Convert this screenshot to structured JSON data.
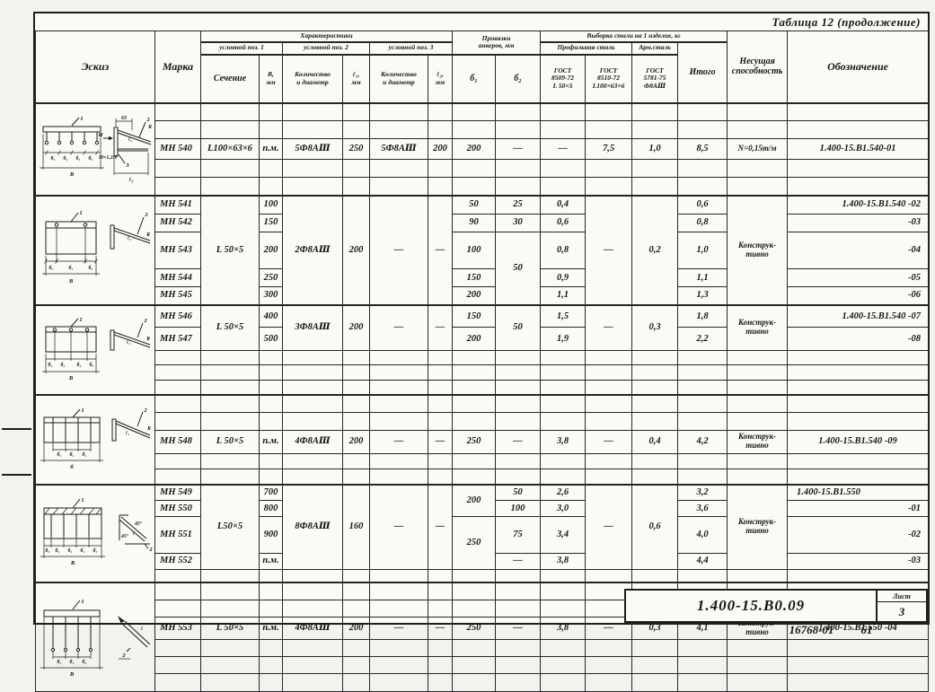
{
  "title": "Таблица 12 (продолжение)",
  "header": {
    "eskiz": "Эскиз",
    "marka": "Марка",
    "khar": "Характеристики",
    "pos1": "условной поз. 1",
    "pos2": "условной поз. 2",
    "pos3": "условной поз. 3",
    "sech": "Сечение",
    "bmm": "В,\nмм",
    "kol": "Количество\nи диаметр",
    "l1": "ℓ₁,\nмм",
    "l2": "ℓ₂,\nмм",
    "priv": "Привязки\nанкеров, мм",
    "b1": "б₁",
    "b2": "б₂",
    "vyb": "Выборка стали на 1 изделие, кг",
    "prof": "Профильная сталь",
    "arm": "Арм.сталь",
    "g1": "ГОСТ\n8509-72\nL 50×5",
    "g2": "ГОСТ\n8510-72\nL100×63×6",
    "g3": "ГОСТ\n5781-75\nФ8АⅢ",
    "itogo": "Итого",
    "nes": "Несущая\nспособность",
    "obozn": "Обозначение"
  },
  "table": {
    "blocks": [
      {
        "sketch": "s1",
        "rows": [
          {
            "h": 16,
            "e": 15
          },
          {
            "h": 16,
            "e": 15
          },
          {
            "h": 18,
            "cells": [
              {
                "t": "МН 540"
              },
              {
                "t": "L100×63×6"
              },
              {
                "t": "п.м."
              },
              {
                "t": "5Ф8АⅢ"
              },
              {
                "t": "250"
              },
              {
                "t": "5Ф8АⅢ"
              },
              {
                "t": "200"
              },
              {
                "t": "200"
              },
              {
                "t": "—"
              },
              {
                "t": "—"
              },
              {
                "t": "7,5"
              },
              {
                "t": "1,0"
              },
              {
                "t": "8,5"
              },
              {
                "t": "N=0,15т/м"
              },
              {
                "t": "1.400-15.В1.540-01",
                "c": "obc"
              }
            ]
          },
          {
            "h": 16,
            "e": 15
          },
          {
            "h": 16,
            "e": 15
          }
        ]
      },
      {
        "sketch": "s2",
        "rows": [
          {
            "h": 20,
            "cells": [
              {
                "t": "МН 541"
              },
              {
                "t": "L 50×5",
                "s": 5
              },
              {
                "t": "100"
              },
              {
                "t": "2Ф8АⅢ",
                "s": 5
              },
              {
                "t": "200",
                "s": 5
              },
              {
                "t": "—",
                "s": 5
              },
              {
                "t": "—",
                "s": 5
              },
              {
                "t": "50"
              },
              {
                "t": "25"
              },
              {
                "t": "0,4"
              },
              {
                "t": "—",
                "s": 5
              },
              {
                "t": "0,2",
                "s": 5
              },
              {
                "t": "0,6"
              },
              {
                "t": "Конструк-\nтивно",
                "s": 5
              },
              {
                "t": "1.400-15.В1.540 -02",
                "c": "obr"
              }
            ]
          },
          {
            "h": 20,
            "cells": [
              {
                "t": "МН 542"
              },
              {
                "t": "150"
              },
              {
                "t": "90"
              },
              {
                "t": "30"
              },
              {
                "t": "0,6"
              },
              {
                "t": "0,8"
              },
              {
                "t": "-03",
                "c": "obr"
              }
            ]
          },
          {
            "h": 20,
            "cells": [
              {
                "t": "МН 543"
              },
              {
                "t": "200"
              },
              {
                "t": "100"
              },
              {
                "t": "50",
                "s": 3
              },
              {
                "t": "0,8"
              },
              {
                "t": "1,0"
              },
              {
                "t": "-04",
                "c": "obr"
              }
            ]
          },
          {
            "h": 20,
            "cells": [
              {
                "t": "МН 544"
              },
              {
                "t": "250"
              },
              {
                "t": "150"
              },
              {
                "t": "0,9"
              },
              {
                "t": "1,1"
              },
              {
                "t": "-05",
                "c": "obr"
              }
            ]
          },
          {
            "h": 20,
            "cells": [
              {
                "t": "МН 545"
              },
              {
                "t": "300"
              },
              {
                "t": "200"
              },
              {
                "t": "1,1"
              },
              {
                "t": "1,3"
              },
              {
                "t": "-06",
                "c": "obr"
              }
            ]
          }
        ]
      },
      {
        "sketch": "s3",
        "rows": [
          {
            "h": 20,
            "cells": [
              {
                "t": "МН 546"
              },
              {
                "t": "L 50×5",
                "s": 2
              },
              {
                "t": "400"
              },
              {
                "t": "3Ф8АⅢ",
                "s": 2
              },
              {
                "t": "200",
                "s": 2
              },
              {
                "t": "—",
                "s": 2
              },
              {
                "t": "—",
                "s": 2
              },
              {
                "t": "150"
              },
              {
                "t": "50",
                "s": 2
              },
              {
                "t": "1,5"
              },
              {
                "t": "—",
                "s": 2
              },
              {
                "t": "0,3",
                "s": 2
              },
              {
                "t": "1,8"
              },
              {
                "t": "Конструк-\nтивно",
                "s": 2
              },
              {
                "t": "1.400-15.В1.540 -07",
                "c": "obr"
              }
            ]
          },
          {
            "h": 20,
            "cells": [
              {
                "t": "МН 547"
              },
              {
                "t": "500"
              },
              {
                "t": "200"
              },
              {
                "t": "1,9"
              },
              {
                "t": "2,2"
              },
              {
                "t": "-08",
                "c": "obr"
              }
            ]
          },
          {
            "h": 13,
            "e": 15
          },
          {
            "h": 13,
            "e": 15
          },
          {
            "h": 13,
            "e": 15
          }
        ]
      },
      {
        "sketch": "s4",
        "rows": [
          {
            "h": 16,
            "e": 15
          },
          {
            "h": 16,
            "e": 15
          },
          {
            "h": 18,
            "cells": [
              {
                "t": "МН 548"
              },
              {
                "t": "L 50×5"
              },
              {
                "t": "п.м."
              },
              {
                "t": "4Ф8АⅢ"
              },
              {
                "t": "200"
              },
              {
                "t": "—"
              },
              {
                "t": "—"
              },
              {
                "t": "250"
              },
              {
                "t": "—"
              },
              {
                "t": "3,8"
              },
              {
                "t": "—"
              },
              {
                "t": "0,4"
              },
              {
                "t": "4,2"
              },
              {
                "t": "Конструк-\nтивно"
              },
              {
                "t": "1.400-15.В1.540 -09",
                "c": "obc"
              }
            ]
          },
          {
            "h": 14,
            "e": 15
          },
          {
            "h": 14,
            "e": 15
          }
        ]
      },
      {
        "sketch": "s5",
        "rows": [
          {
            "h": 18,
            "cells": [
              {
                "t": "МН 549"
              },
              {
                "t": "L50×5",
                "s": 4
              },
              {
                "t": "700"
              },
              {
                "t": "8Ф8АⅢ",
                "s": 4
              },
              {
                "t": "160",
                "s": 4
              },
              {
                "t": "—",
                "s": 4
              },
              {
                "t": "—",
                "s": 4
              },
              {
                "t": "200",
                "s": 2
              },
              {
                "t": "50"
              },
              {
                "t": "2,6"
              },
              {
                "t": "—",
                "s": 4
              },
              {
                "t": "0,6",
                "s": 4
              },
              {
                "t": "3,2"
              },
              {
                "t": "Конструк-\nтивно",
                "s": 4
              },
              {
                "t": "1.400-15.В1.550",
                "c": "obl"
              }
            ]
          },
          {
            "h": 18,
            "cells": [
              {
                "t": "МН 550"
              },
              {
                "t": "800"
              },
              {
                "t": "100"
              },
              {
                "t": "3,0"
              },
              {
                "t": "3,6"
              },
              {
                "t": "-01",
                "c": "obr"
              }
            ]
          },
          {
            "h": 18,
            "cells": [
              {
                "t": "МН 551"
              },
              {
                "t": "900"
              },
              {
                "t": "250",
                "s": 2
              },
              {
                "t": "75"
              },
              {
                "t": "3,4"
              },
              {
                "t": "4,0"
              },
              {
                "t": "-02",
                "c": "obr"
              }
            ]
          },
          {
            "h": 18,
            "cells": [
              {
                "t": "МН 552"
              },
              {
                "t": "п.м."
              },
              {
                "t": "—"
              },
              {
                "t": "3,8"
              },
              {
                "t": "4,4"
              },
              {
                "t": "-03",
                "c": "obr"
              }
            ]
          },
          {
            "h": 15,
            "e": 15
          }
        ]
      },
      {
        "sketch": "s6",
        "rows": [
          {
            "h": 16,
            "e": 15
          },
          {
            "h": 16,
            "e": 15
          },
          {
            "h": 20,
            "cells": [
              {
                "t": "МН 553"
              },
              {
                "t": "L 50×5"
              },
              {
                "t": "п.м."
              },
              {
                "t": "4Ф8АⅢ"
              },
              {
                "t": "200"
              },
              {
                "t": "—"
              },
              {
                "t": "—"
              },
              {
                "t": "250"
              },
              {
                "t": "—"
              },
              {
                "t": "3,8"
              },
              {
                "t": "—"
              },
              {
                "t": "0,3"
              },
              {
                "t": "4,1"
              },
              {
                "t": "Конструк-\nтивно"
              },
              {
                "t": "1.400-15.В1.550 -04",
                "c": "obc"
              }
            ]
          },
          {
            "h": 16,
            "e": 15
          },
          {
            "h": 16,
            "e": 15
          },
          {
            "h": 16,
            "e": 15
          }
        ]
      }
    ]
  },
  "sketches": {
    "s1": {
      "c1": "1",
      "c2": "2",
      "c3": "3",
      "d63": "63",
      "r": "R",
      "l1": "ℓ₁",
      "l2": "ℓ₂",
      "n": "Н",
      "m": "М=1,2Н",
      "b1": "б₁",
      "b": "В"
    },
    "s2": {
      "c1": "1",
      "c2": "2",
      "r": "R",
      "l1": "ℓ₁",
      "b1": "б₁",
      "b2": "б₂",
      "b": "В"
    },
    "s3": {
      "c1": "1",
      "c2": "2",
      "r": "R",
      "l1": "ℓ₁",
      "b1": "б₁",
      "b2": "б₂",
      "b": "В"
    },
    "s4": {
      "c1": "1",
      "c2": "2",
      "r": "R",
      "l1": "ℓ₁",
      "b1": "б₁",
      "b": "б"
    },
    "s5": {
      "c1": "1",
      "c2": "2",
      "deg": "45°",
      "b1": "б₁",
      "b2": "б₂",
      "b": "В",
      "l": "ℓ"
    },
    "s6": {
      "c1": "1",
      "c2": "2",
      "l": "ℓ",
      "b1": "б₁",
      "b": "В"
    }
  },
  "stamp": {
    "code": "1.400-15.В0.09",
    "sheet_label": "Лист",
    "sheet_num": "3"
  },
  "footer": {
    "doc_number": "16768-01",
    "sheet": "61"
  }
}
